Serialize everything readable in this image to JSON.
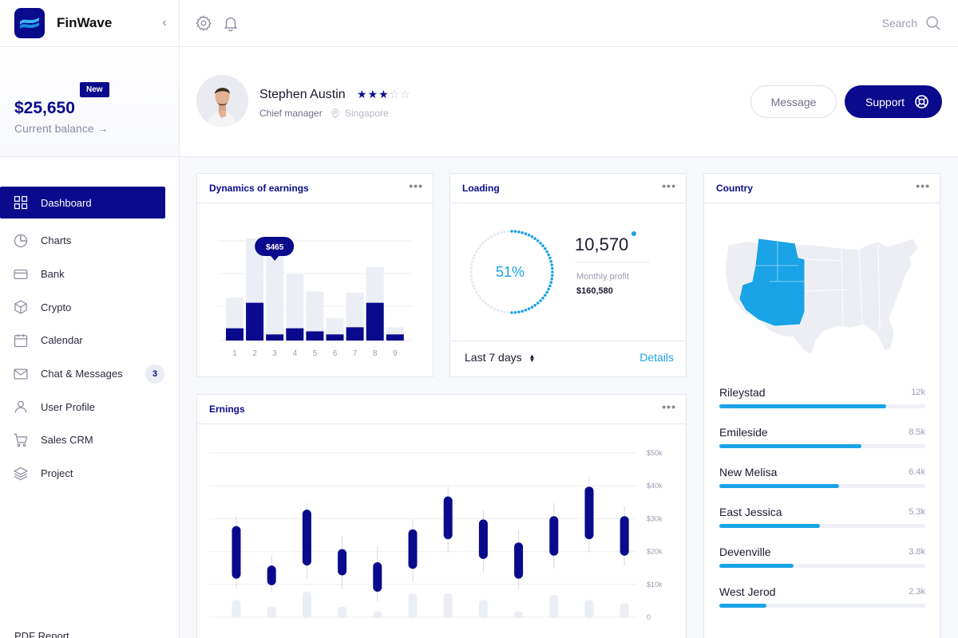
{
  "app": {
    "name": "FinWave"
  },
  "balance": {
    "badge": "New",
    "amount": "$25,650",
    "label": "Current balance →"
  },
  "nav": [
    {
      "label": "Dashboard",
      "icon": "grid-icon",
      "active": true
    },
    {
      "label": "Charts",
      "icon": "pie-chart-icon"
    },
    {
      "label": "Bank",
      "icon": "card-icon"
    },
    {
      "label": "Crypto",
      "icon": "cube-icon"
    },
    {
      "label": "Calendar",
      "icon": "calendar-icon"
    },
    {
      "label": "Chat & Messages",
      "icon": "mail-icon",
      "badge": "3"
    },
    {
      "label": "User Profile",
      "icon": "user-icon"
    },
    {
      "label": "Sales CRM",
      "icon": "cart-icon"
    },
    {
      "label": "Project",
      "icon": "layers-icon"
    }
  ],
  "sidebar_footer": "PDF Report",
  "topbar": {
    "search_label": "Search"
  },
  "profile": {
    "name": "Stephen Austin",
    "rating": 3,
    "rating_max": 5,
    "role": "Chief manager",
    "location": "Singapore",
    "message_label": "Message",
    "support_label": "Support"
  },
  "earnings_card": {
    "title": "Dynamics of earnings",
    "tooltip": "$465",
    "categories": [
      "1",
      "2",
      "3",
      "4",
      "5",
      "6",
      "7",
      "8",
      "9"
    ],
    "back_values": [
      42,
      100,
      92,
      65,
      48,
      22,
      47,
      72,
      13
    ],
    "front_values": [
      12,
      37,
      6,
      12,
      9,
      6,
      13,
      37,
      6
    ],
    "highlight_index": 2
  },
  "loading_card": {
    "title": "Loading",
    "percent_label": "51%",
    "percent": 51,
    "value": "10,570",
    "sub_label": "Monthly profit",
    "sub_value": "$160,580",
    "period": "Last 7 days",
    "details": "Details"
  },
  "country_card": {
    "title": "Country",
    "rows": [
      {
        "name": "Rileystad",
        "value": "12k",
        "fraction": 0.81
      },
      {
        "name": "Emileside",
        "value": "8.5k",
        "fraction": 0.69
      },
      {
        "name": "New Melisa",
        "value": "6.4k",
        "fraction": 0.58
      },
      {
        "name": "East Jessica",
        "value": "5.3k",
        "fraction": 0.49
      },
      {
        "name": "Devenville",
        "value": "3.8k",
        "fraction": 0.36
      },
      {
        "name": "West Jerod",
        "value": "2.3k",
        "fraction": 0.23
      }
    ]
  },
  "ernings_card": {
    "title": "Ernings",
    "y_ticks": [
      "$50k",
      "$40k",
      "$30k",
      "$20k",
      "$10k",
      "0"
    ],
    "candles": [
      {
        "open": 12,
        "close": 28,
        "low": 9,
        "high": 31
      },
      {
        "open": 10,
        "close": 16,
        "low": 8,
        "high": 19
      },
      {
        "open": 16,
        "close": 33,
        "low": 12,
        "high": 35
      },
      {
        "open": 13,
        "close": 21,
        "low": 9,
        "high": 25
      },
      {
        "open": 8,
        "close": 17,
        "low": 5,
        "high": 22
      },
      {
        "open": 15,
        "close": 27,
        "low": 11,
        "high": 30
      },
      {
        "open": 24,
        "close": 37,
        "low": 20,
        "high": 40
      },
      {
        "open": 18,
        "close": 30,
        "low": 14,
        "high": 33
      },
      {
        "open": 12,
        "close": 23,
        "low": 9,
        "high": 27
      },
      {
        "open": 19,
        "close": 31,
        "low": 15,
        "high": 35
      },
      {
        "open": 24,
        "close": 40,
        "low": 20,
        "high": 43
      },
      {
        "open": 19,
        "close": 31,
        "low": 16,
        "high": 34
      }
    ],
    "volume": [
      5.5,
      3.5,
      8,
      3.5,
      2,
      7.5,
      7.5,
      5.5,
      2,
      7,
      5.5,
      4.5
    ]
  },
  "colors": {
    "primary": "#0a0a8c",
    "accent": "#1aa3e6",
    "muted_bar": "#eef0f6",
    "map_base": "#eceef4"
  }
}
